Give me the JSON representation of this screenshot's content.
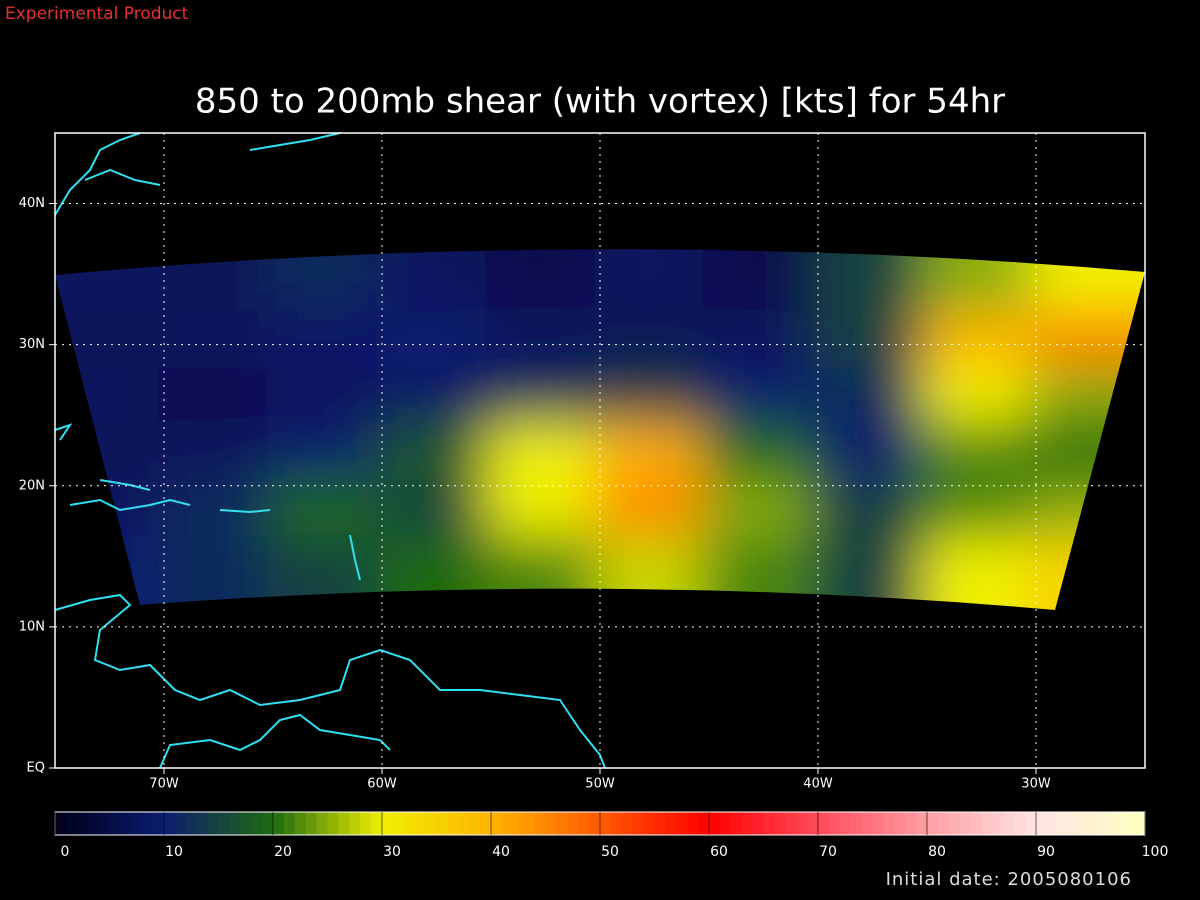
{
  "header": {
    "label": "Experimental Product"
  },
  "chart_data": {
    "type": "heatmap",
    "title": "850 to 200mb shear (with vortex) [kts] for 54hr",
    "xlim": [
      -75,
      -25
    ],
    "ylim": [
      0,
      45
    ],
    "xticks": [
      {
        "value": -70,
        "label": "70W"
      },
      {
        "value": -60,
        "label": "60W"
      },
      {
        "value": -50,
        "label": "50W"
      },
      {
        "value": -40,
        "label": "40W"
      },
      {
        "value": -30,
        "label": "30W"
      }
    ],
    "yticks": [
      {
        "value": 0,
        "label": "EQ"
      },
      {
        "value": 10,
        "label": "10N"
      },
      {
        "value": 20,
        "label": "20N"
      },
      {
        "value": 30,
        "label": "30N"
      },
      {
        "value": 40,
        "label": "40N"
      }
    ],
    "grid": true,
    "lons": [
      -72.5,
      -67.5,
      -62.5,
      -57.5,
      -52.5,
      -47.5,
      -42.5,
      -37.5,
      -32.5,
      -27.5
    ],
    "lats": [
      34,
      30,
      26,
      22,
      18,
      14
    ],
    "values": [
      [
        8,
        7,
        12,
        8,
        6,
        8,
        6,
        15,
        25,
        30
      ],
      [
        7,
        8,
        9,
        10,
        8,
        7,
        8,
        15,
        40,
        45
      ],
      [
        8,
        6,
        8,
        9,
        12,
        14,
        10,
        12,
        30,
        25
      ],
      [
        7,
        8,
        10,
        18,
        30,
        40,
        20,
        10,
        22,
        20
      ],
      [
        8,
        12,
        20,
        15,
        30,
        45,
        25,
        15,
        22,
        25
      ],
      [
        10,
        12,
        15,
        20,
        22,
        28,
        22,
        15,
        30,
        35
      ]
    ],
    "colorbar": {
      "lim": [
        0,
        100
      ],
      "ticks": [
        0,
        10,
        20,
        30,
        40,
        50,
        60,
        70,
        80,
        90,
        100
      ],
      "colors": [
        "#000018",
        "#0c1c70",
        "#1e6a10",
        "#f0f000",
        "#ffb400",
        "#ff5a00",
        "#ff0000",
        "#ff4a5a",
        "#ff9ea4",
        "#ffe4e4",
        "#ffffc0"
      ]
    }
  },
  "footer": {
    "label": "Initial date: 2005080106"
  }
}
